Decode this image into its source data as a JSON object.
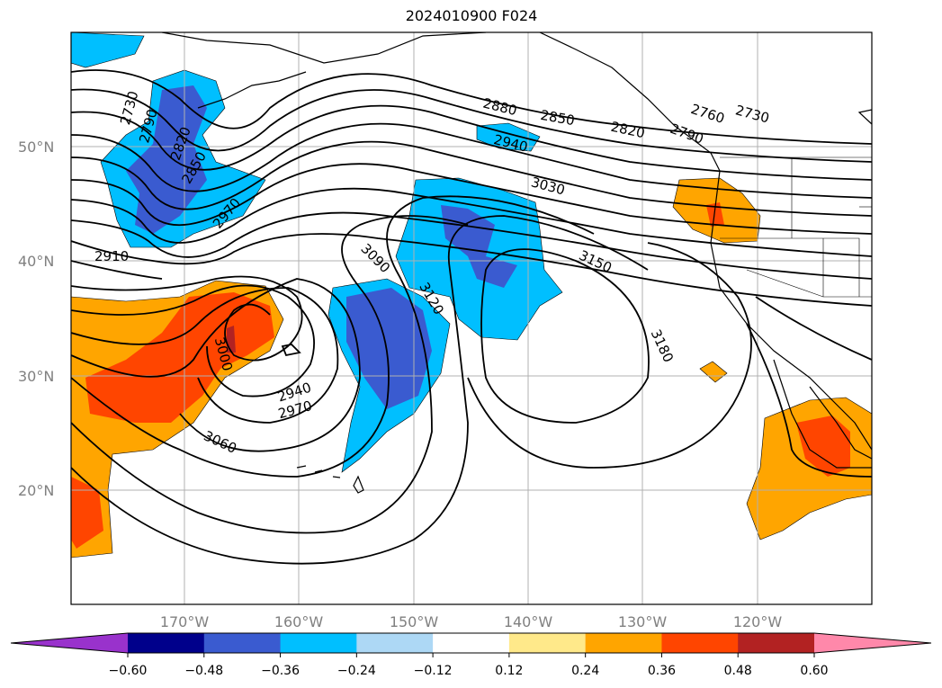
{
  "title": "2024010900 F024",
  "map": {
    "lon_range": [
      -180,
      -110
    ],
    "lat_range": [
      10,
      60
    ],
    "lat_labels": [
      {
        "lat": 50,
        "label": "50°N"
      },
      {
        "lat": 40,
        "label": "40°N"
      },
      {
        "lat": 30,
        "label": "30°N"
      },
      {
        "lat": 20,
        "label": "20°N"
      }
    ],
    "lon_labels": [
      {
        "lon": -170,
        "label": "170°W"
      },
      {
        "lon": -160,
        "label": "160°W"
      },
      {
        "lon": -150,
        "label": "150°W"
      },
      {
        "lon": -140,
        "label": "140°W"
      },
      {
        "lon": -130,
        "label": "130°W"
      },
      {
        "lon": -120,
        "label": "120°W"
      }
    ],
    "gridlines": true
  },
  "contour_labels": [
    "2730",
    "2760",
    "2790",
    "2820",
    "2850",
    "2880",
    "2910",
    "2940",
    "2970",
    "3000",
    "3030",
    "3060",
    "3090",
    "3120",
    "3150",
    "3180"
  ],
  "colorbar": {
    "extend": "both",
    "levels": [
      "−0.60",
      "−0.48",
      "−0.36",
      "−0.24",
      "−0.12",
      "0.12",
      "0.24",
      "0.36",
      "0.48",
      "0.60"
    ],
    "colors": [
      "#9932cc",
      "#00008b",
      "#3a5bd0",
      "#00bfff",
      "#add8f5",
      "#ffffff",
      "#ffe98a",
      "#ffa500",
      "#ff4500",
      "#b22222",
      "#ff88aa"
    ]
  }
}
